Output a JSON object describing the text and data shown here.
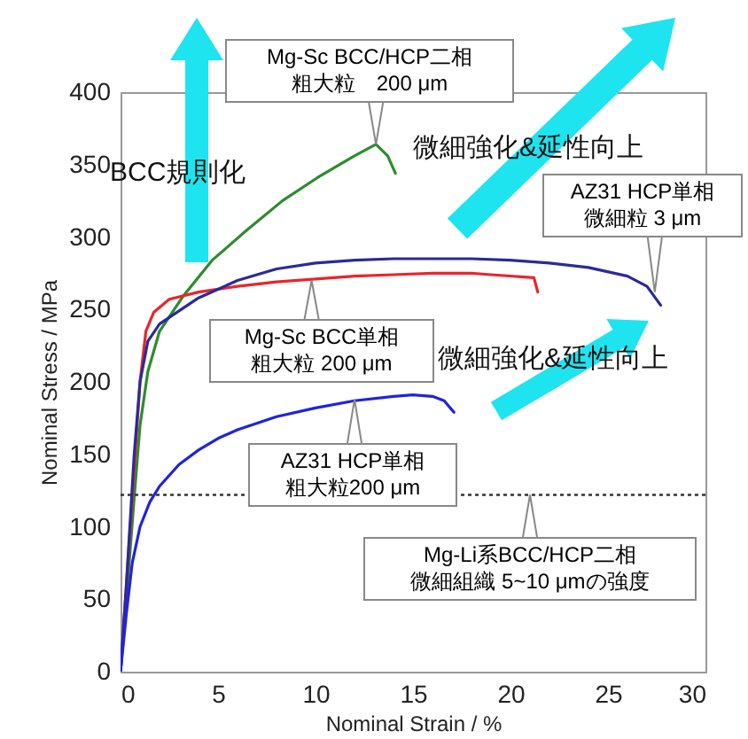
{
  "chart_data": {
    "type": "line",
    "xlabel": "Nominal Strain / %",
    "ylabel": "Nominal Stress / MPa",
    "xlim": [
      0,
      30
    ],
    "xticks": [
      0,
      5,
      10,
      15,
      20,
      25,
      30
    ],
    "ylim": [
      0,
      400
    ],
    "yticks": [
      0,
      50,
      100,
      150,
      200,
      250,
      300,
      350,
      400
    ],
    "grid": false,
    "legend": false,
    "line_style": "solid",
    "marker": "none",
    "series": [
      {
        "color": "#2e8b2e",
        "x": [
          0,
          0.3,
          0.7,
          1,
          1.4,
          2,
          3.2,
          4.7,
          6.5,
          8.3,
          10.1,
          12,
          13.1,
          13.7,
          14.1
        ],
        "values": [
          0,
          50,
          120,
          170,
          207,
          235,
          259,
          284,
          305,
          325,
          341,
          356,
          364,
          356,
          344
        ]
      },
      {
        "color": "#e8262b",
        "x": [
          0,
          0.3,
          0.7,
          1,
          1.3,
          1.7,
          2.5,
          4,
          6,
          8,
          10,
          12,
          14,
          16,
          18,
          19,
          21.2,
          21.4
        ],
        "values": [
          0,
          60,
          140,
          200,
          235,
          248,
          257,
          262,
          266,
          269,
          271,
          273,
          274,
          275,
          275,
          274,
          272,
          262
        ]
      },
      {
        "color": "#2a2a9a",
        "x": [
          0,
          0.3,
          0.7,
          1,
          1.4,
          2,
          4,
          6,
          8,
          10,
          12,
          14,
          16,
          18,
          20,
          22,
          24,
          26,
          27,
          27.7
        ],
        "values": [
          0,
          60,
          150,
          200,
          228,
          240,
          258,
          270,
          278,
          282,
          284,
          285,
          285,
          285,
          284,
          282,
          279,
          273,
          266,
          253
        ]
      },
      {
        "color": "#2222dd",
        "x": [
          0,
          0.3,
          0.6,
          1,
          1.5,
          2,
          3,
          4,
          5,
          6,
          8,
          10,
          12,
          14,
          15,
          16,
          16.6,
          17.1
        ],
        "values": [
          0,
          40,
          75,
          100,
          117,
          128,
          143,
          153,
          161,
          167,
          176,
          182,
          187,
          190,
          191,
          190,
          187,
          179
        ]
      }
    ],
    "ref_lines": [
      {
        "axis": "y",
        "value": 122,
        "label": "Mg-Li系BCC/HCP二相微細組織 5~10 μmの強度",
        "line_style": "dotted",
        "color": "#333333"
      }
    ],
    "annotations": [
      {
        "text": "Mg-Sc BCC/HCP二相粗大粒　200 μm",
        "x": 13.1,
        "y": 364
      },
      {
        "text": "AZ31 HCP単相微細粒 3 μm",
        "x": 27.4,
        "y": 262
      },
      {
        "text": "Mg-Sc BCC単相粗大粒 200 μm",
        "x": 9.8,
        "y": 270
      },
      {
        "text": "AZ31 HCP単相粗大粒200 μm",
        "x": 12,
        "y": 188
      },
      "BCC規則化",
      "微細強化&延性向上",
      "微細強化&延性向上"
    ]
  }
}
